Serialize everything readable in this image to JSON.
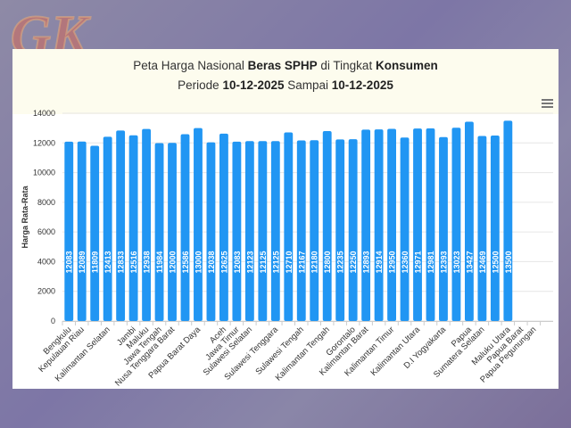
{
  "logo": {
    "text": "GK"
  },
  "header": {
    "title_parts": [
      "Peta Harga Nasional ",
      "Beras SPHP",
      " di Tingkat ",
      "Konsumen"
    ],
    "subtitle_parts": [
      "Periode ",
      "10-12-2025",
      " Sampai ",
      "10-12-2025"
    ]
  },
  "menu_icon": "hamburger-menu-icon",
  "chart_data": {
    "type": "bar",
    "title": "Peta Harga Nasional Beras SPHP di Tingkat Konsumen",
    "subtitle": "Periode 10-12-2025 Sampai 10-12-2025",
    "xlabel": "",
    "ylabel": "Harga Rata-Rata",
    "ylim": [
      0,
      14000
    ],
    "yticks": [
      0,
      2000,
      4000,
      6000,
      8000,
      10000,
      12000,
      14000
    ],
    "grid": true,
    "bar_color": "#2196f3",
    "categories": [
      "Bengkulu",
      "Kepulauan Riau",
      "",
      "Kalimantan Selatan",
      "",
      "Jambi",
      "Maluku",
      "Jawa Tengah",
      "Nusa Tenggara Barat",
      "",
      "Papua Barat Daya",
      "",
      "Aceh",
      "Jawa Timur",
      "Sulawesi Selatan",
      "",
      "Sulawesi Tenggara",
      "",
      "Sulawesi Tengah",
      "",
      "Kalimantan Tengah",
      "",
      "Gorontalo",
      "Kalimantan Barat",
      "",
      "Kalimantan Timur",
      "",
      "Kalimantan Utara",
      "",
      "D.I Yogyakarta",
      "",
      "Papua",
      "Sumatera Selatan",
      "",
      "Maluku Utara",
      "Papua Barat",
      "Papua Pegunungan",
      ""
    ],
    "values": [
      12083,
      12089,
      11809,
      12413,
      12833,
      12516,
      12938,
      11984,
      12000,
      12586,
      13000,
      12038,
      12625,
      12083,
      12123,
      12125,
      12125,
      12710,
      12167,
      12180,
      12800,
      12235,
      12250,
      12893,
      12914,
      12950,
      12360,
      12971,
      12981,
      12393,
      13023,
      13427,
      12469,
      12500,
      13500,
      null,
      null,
      null
    ]
  }
}
